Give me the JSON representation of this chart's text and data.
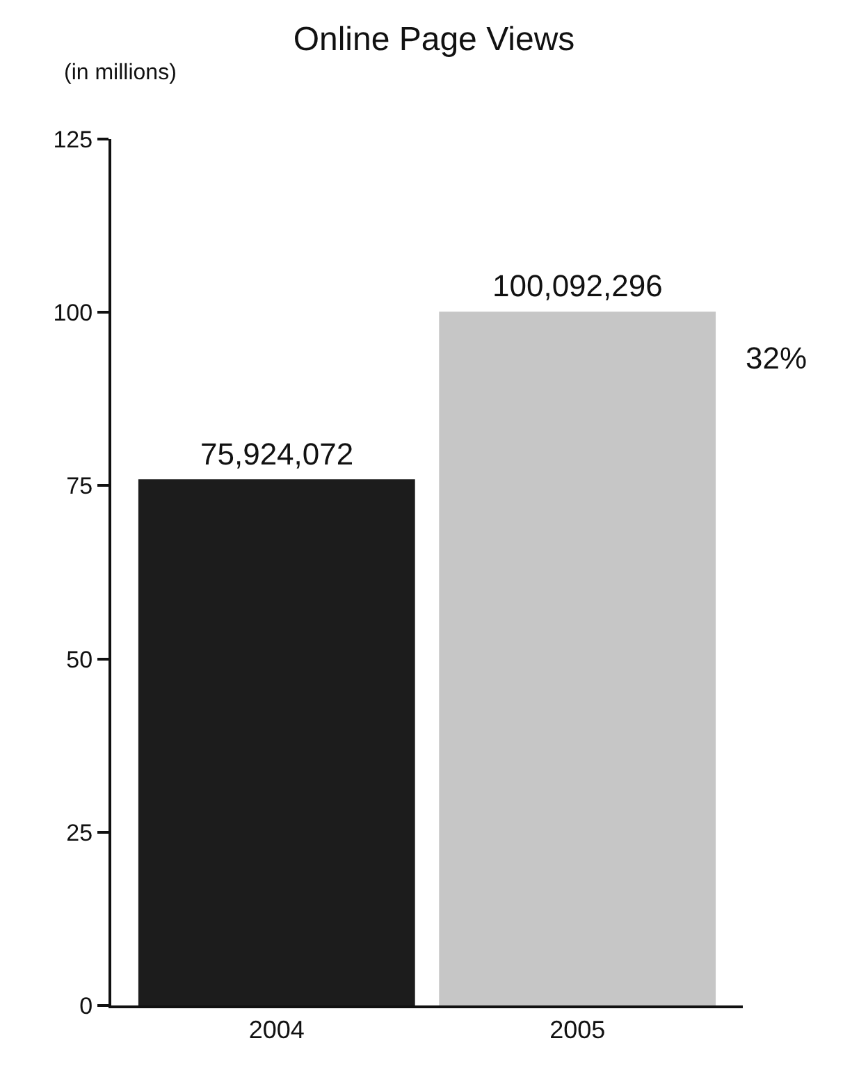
{
  "chart_data": {
    "type": "bar",
    "title": "Online Page Views",
    "ylabel": "(in millions)",
    "categories": [
      "2004",
      "2005"
    ],
    "values": [
      75.92,
      100.09
    ],
    "colors": [
      "#1c1c1c",
      "#c6c6c6"
    ],
    "ylim": [
      0,
      125
    ],
    "yticks": [
      0,
      25,
      50,
      75,
      100,
      125
    ],
    "annotations": [
      {
        "text": "75,924,072",
        "x": "2004",
        "y": 75.92
      },
      {
        "text": "100,092,296",
        "x": "2005",
        "y": 100.09
      },
      "32%"
    ]
  }
}
